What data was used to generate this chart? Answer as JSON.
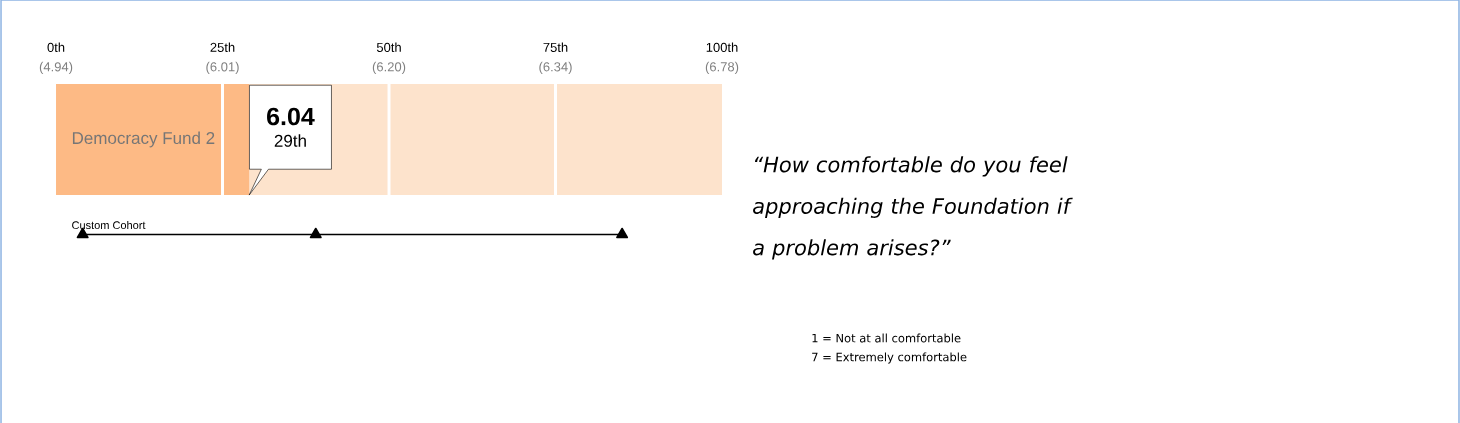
{
  "chart_data": {
    "type": "bar",
    "orientation": "horizontal",
    "categories": [
      "Democracy Fund 2",
      "Custom Cohort"
    ],
    "series": [
      {
        "type": "bar",
        "color": "#fdba85",
        "values": [
          29,
          null
        ]
      },
      {
        "type": "line",
        "color": "#000000",
        "marker": "triangle",
        "x": [
          "Custom Cohort",
          "Custom Cohort",
          "Custom Cohort"
        ],
        "values": [
          4,
          39,
          85
        ]
      }
    ],
    "xlim": [
      0,
      100
    ],
    "xticks": [
      {
        "value": 0,
        "label": "0th"
      },
      {
        "value": 25,
        "label": "25th"
      },
      {
        "value": 50,
        "label": "50th"
      },
      {
        "value": 75,
        "label": "75th"
      },
      {
        "value": 100,
        "label": "100th"
      }
    ],
    "bands": [
      {
        "axis": "x",
        "from": 25,
        "to": 50,
        "color": "#fde3cc"
      },
      {
        "axis": "x",
        "from": 50,
        "to": 75,
        "color": "#fde3cc"
      },
      {
        "axis": "x",
        "from": 75,
        "to": 100,
        "color": "#fde3cc"
      }
    ],
    "annotations": [
      "6.04",
      "29th",
      "(4.94)",
      "(6.01)",
      "(6.20)",
      "(6.34)",
      "(6.78)",
      "“How comfortable do you feel approaching the Foundation if a problem arises?”",
      "1 = Not at all comfortable",
      "7 = Extremely comfortable"
    ]
  }
}
